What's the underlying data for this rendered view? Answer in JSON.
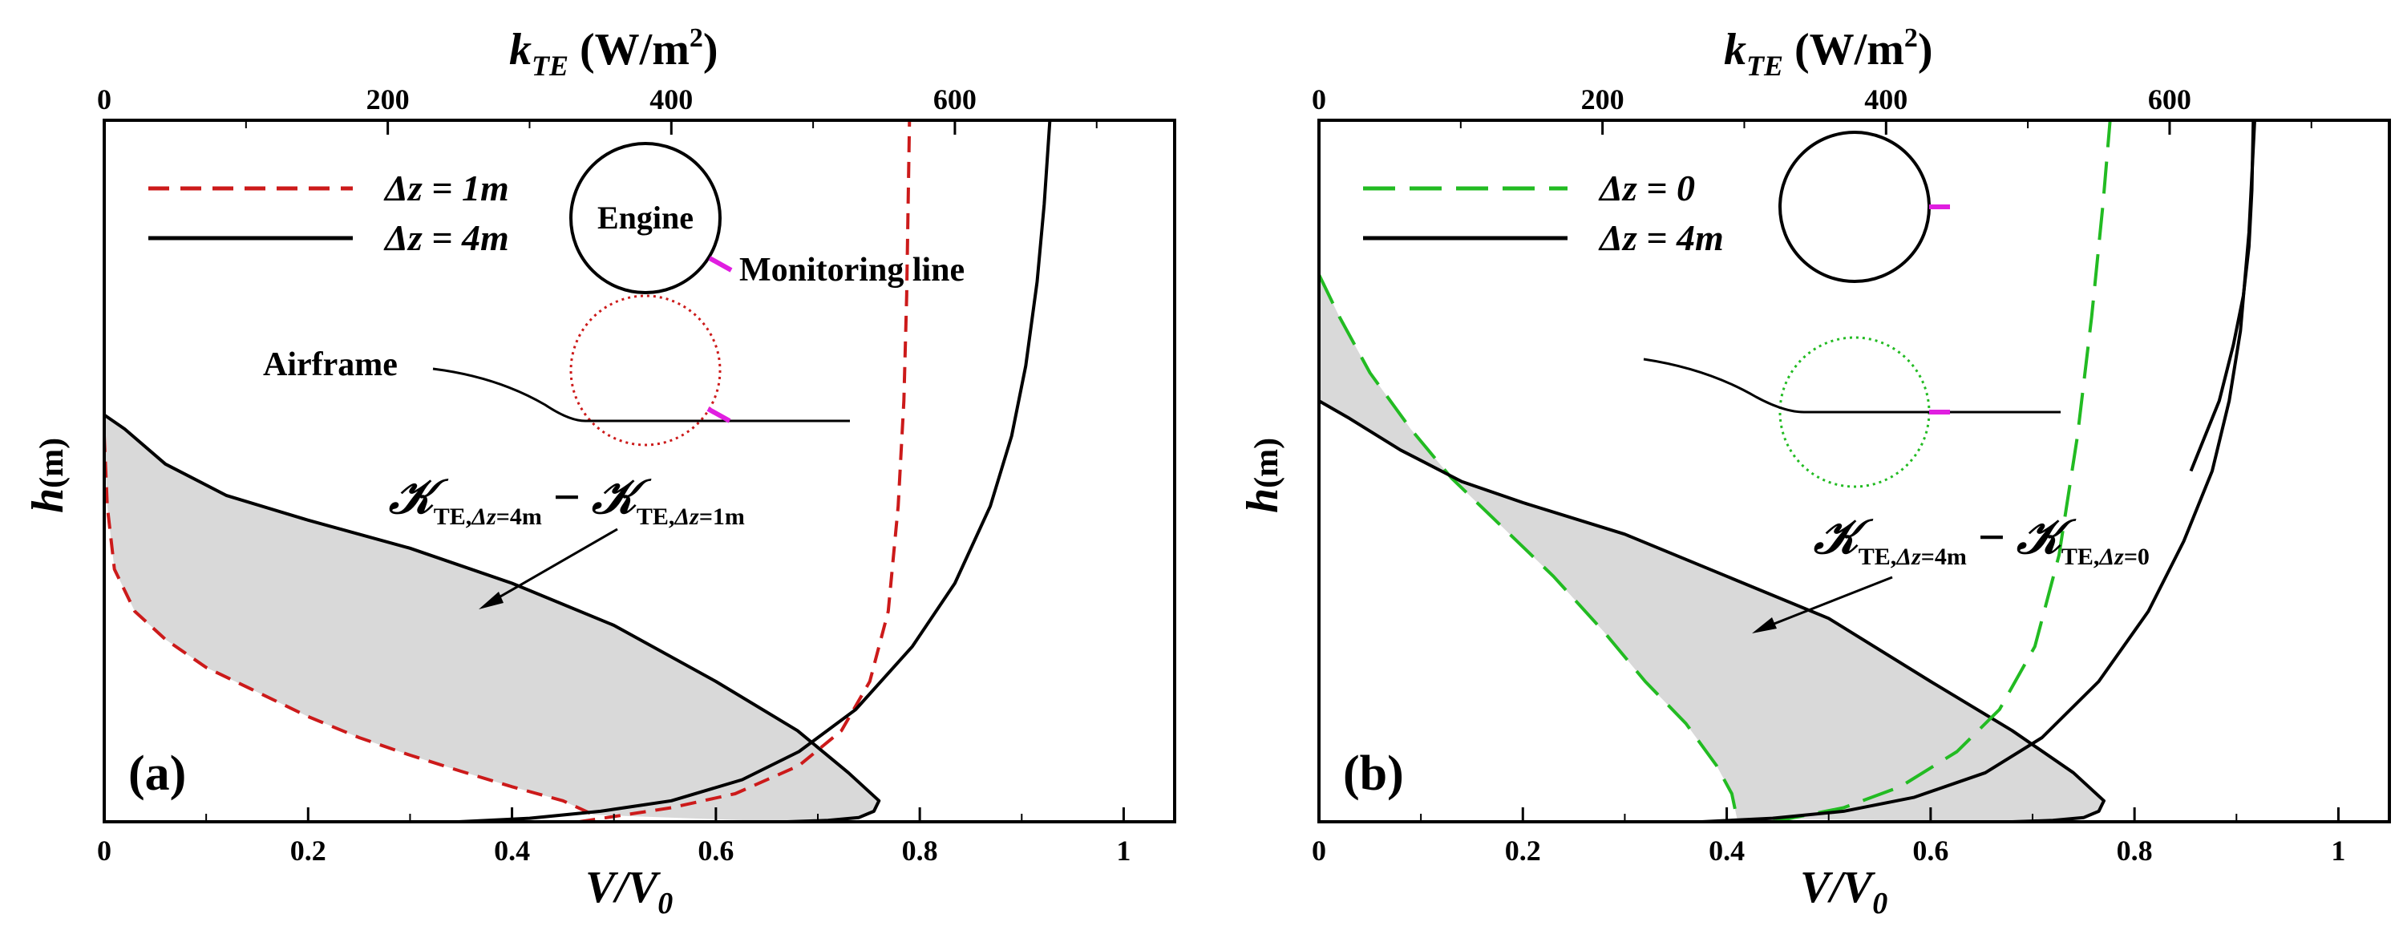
{
  "chart_data": [
    {
      "type": "line",
      "panel_label": "(a)",
      "xlabel_bottom": {
        "main": "V/V",
        "sub": "0"
      },
      "xlabel_top": {
        "main": "k",
        "sub": "TE",
        "unit": "(W/m",
        "sup": "2",
        "close": ")"
      },
      "ylabel": {
        "main": "h",
        "unit": "(m)"
      },
      "xlim": [
        0,
        1.05
      ],
      "x_ticks": [
        "0",
        "0.2",
        "0.4",
        "0.6",
        "0.8",
        "1"
      ],
      "x_tick_values": [
        0,
        0.2,
        0.4,
        0.6,
        0.8,
        1.0
      ],
      "top_xlim": [
        0,
        755
      ],
      "top_ticks": [
        "0",
        "200",
        "400",
        "600"
      ],
      "top_tick_values": [
        0,
        200,
        400,
        600
      ],
      "ylim": [
        0,
        1
      ],
      "shaded": {
        "between": [
          "Δz = 4m (V/V0)",
          "Δz = 1m (V/V0)"
        ],
        "color": "#d9d9d9"
      },
      "series": [
        {
          "name": "Δz = 1m",
          "axis": "bottom",
          "style": "dashed",
          "color": "#cc1a1a",
          "x": [
            0.0,
            0.003,
            0.01,
            0.03,
            0.06,
            0.1,
            0.15,
            0.2,
            0.25,
            0.3,
            0.35,
            0.4,
            0.45,
            0.48
          ],
          "y": [
            0.55,
            0.45,
            0.36,
            0.3,
            0.26,
            0.22,
            0.185,
            0.15,
            0.12,
            0.095,
            0.072,
            0.05,
            0.03,
            0.01
          ]
        },
        {
          "name": "Δz = 4m",
          "axis": "bottom",
          "style": "solid",
          "color": "#000000",
          "x": [
            0.0,
            0.02,
            0.06,
            0.12,
            0.2,
            0.3,
            0.4,
            0.5,
            0.6,
            0.68,
            0.73,
            0.76,
            0.755,
            0.74,
            0.71,
            0.69,
            0.67
          ],
          "y": [
            0.58,
            0.56,
            0.51,
            0.465,
            0.43,
            0.39,
            0.34,
            0.28,
            0.2,
            0.13,
            0.07,
            0.03,
            0.015,
            0.006,
            0.002,
            0.001,
            0.0
          ]
        },
        {
          "name": "Δz = 1m (k_TE)",
          "axis": "top",
          "style": "dashed",
          "color": "#cc1a1a",
          "x": [
            335,
            400,
            445,
            490,
            520,
            540,
            553,
            560,
            564,
            566,
            567,
            568
          ],
          "y": [
            0.0,
            0.02,
            0.04,
            0.08,
            0.13,
            0.2,
            0.3,
            0.45,
            0.6,
            0.75,
            0.88,
            1.0
          ]
        },
        {
          "name": "Δz = 4m (k_TE)",
          "axis": "top",
          "style": "solid",
          "color": "#000000",
          "x": [
            250,
            300,
            350,
            400,
            450,
            490,
            530,
            570,
            600,
            625,
            640,
            650,
            658,
            663,
            667
          ],
          "y": [
            0.0,
            0.005,
            0.015,
            0.03,
            0.06,
            0.1,
            0.16,
            0.25,
            0.34,
            0.45,
            0.55,
            0.65,
            0.77,
            0.88,
            1.0
          ]
        }
      ],
      "legend": [
        {
          "label": "Δz = 1m",
          "style": "dashed",
          "color": "#cc1a1a"
        },
        {
          "label": "Δz = 4m",
          "style": "solid",
          "color": "#000000"
        }
      ],
      "annotations": {
        "engine": "Engine",
        "monitoring": "Monitoring line",
        "airframe": "Airframe",
        "kappa_left": {
          "main": "TE,",
          "delta": "Δz",
          "rest": "=4m"
        },
        "kappa_right": {
          "main": "TE,",
          "delta": "Δz",
          "rest": "=1m"
        }
      }
    },
    {
      "type": "line",
      "panel_label": "(b)",
      "xlabel_bottom": {
        "main": "V/V",
        "sub": "0"
      },
      "xlabel_top": {
        "main": "k",
        "sub": "TE",
        "unit": "(W/m",
        "sup": "2",
        "close": ")"
      },
      "ylabel": {
        "main": "h",
        "unit": "(m)"
      },
      "xlim": [
        0,
        1.05
      ],
      "x_ticks": [
        "0",
        "0.2",
        "0.4",
        "0.6",
        "0.8",
        "1"
      ],
      "x_tick_values": [
        0,
        0.2,
        0.4,
        0.6,
        0.8,
        1.0
      ],
      "top_xlim": [
        0,
        755
      ],
      "top_ticks": [
        "0",
        "200",
        "400",
        "600"
      ],
      "top_tick_values": [
        0,
        200,
        400,
        600
      ],
      "ylim": [
        0,
        1
      ],
      "shaded": {
        "between": [
          "Δz = 4m (V/V0)",
          "Δz = 0 (V/V0)"
        ],
        "color": "#d9d9d9"
      },
      "series": [
        {
          "name": "Δz = 0",
          "axis": "bottom",
          "style": "dashed",
          "color": "#22bb22",
          "x": [
            0.0,
            0.02,
            0.05,
            0.09,
            0.13,
            0.18,
            0.23,
            0.28,
            0.32,
            0.36,
            0.39,
            0.405,
            0.41
          ],
          "y": [
            0.78,
            0.72,
            0.64,
            0.56,
            0.49,
            0.42,
            0.35,
            0.27,
            0.2,
            0.14,
            0.08,
            0.04,
            0.005
          ]
        },
        {
          "name": "Δz = 4m",
          "axis": "bottom",
          "style": "solid",
          "color": "#000000",
          "x": [
            0.0,
            0.03,
            0.08,
            0.14,
            0.2,
            0.3,
            0.4,
            0.5,
            0.6,
            0.68,
            0.74,
            0.77,
            0.765,
            0.75,
            0.72,
            0.7,
            0.68
          ],
          "y": [
            0.6,
            0.575,
            0.53,
            0.485,
            0.455,
            0.41,
            0.35,
            0.29,
            0.2,
            0.13,
            0.07,
            0.03,
            0.015,
            0.006,
            0.002,
            0.001,
            0.0
          ]
        },
        {
          "name": "Δz = 0 (k_TE)",
          "axis": "top",
          "style": "dashed",
          "color": "#22bb22",
          "x": [
            320,
            370,
            410,
            450,
            480,
            505,
            522,
            535,
            545,
            553,
            558
          ],
          "y": [
            0.0,
            0.02,
            0.05,
            0.1,
            0.16,
            0.25,
            0.38,
            0.55,
            0.72,
            0.88,
            1.0
          ]
        },
        {
          "name": "Δz = 4m (k_TE)",
          "axis": "top",
          "style": "solid",
          "color": "#000000",
          "x": [
            270,
            320,
            370,
            420,
            470,
            510,
            550,
            585,
            610,
            630,
            642,
            650,
            656,
            660
          ],
          "y": [
            0.0,
            0.005,
            0.015,
            0.035,
            0.07,
            0.12,
            0.2,
            0.3,
            0.4,
            0.5,
            0.6,
            0.7,
            0.84,
            1.0
          ]
        },
        {
          "name": "Δz = 4m (k_TE, outer)",
          "axis": "top",
          "style": "solid",
          "color": "#000000",
          "x": [
            615,
            635,
            645,
            652,
            656,
            658,
            659
          ],
          "y": [
            0.5,
            0.6,
            0.68,
            0.75,
            0.82,
            0.9,
            1.0
          ]
        }
      ],
      "legend": [
        {
          "label": "Δz = 0",
          "style": "dashed",
          "color": "#22bb22"
        },
        {
          "label": "Δz = 4m",
          "style": "solid",
          "color": "#000000"
        }
      ],
      "annotations": {
        "kappa_left": {
          "main": "TE,",
          "delta": "Δz",
          "rest": "=4m"
        },
        "kappa_right": {
          "main": "TE,",
          "delta": "Δz",
          "rest": "=0"
        }
      }
    }
  ],
  "colors": {
    "magenta": "#e01ee0",
    "shade": "#d9d9d9"
  }
}
